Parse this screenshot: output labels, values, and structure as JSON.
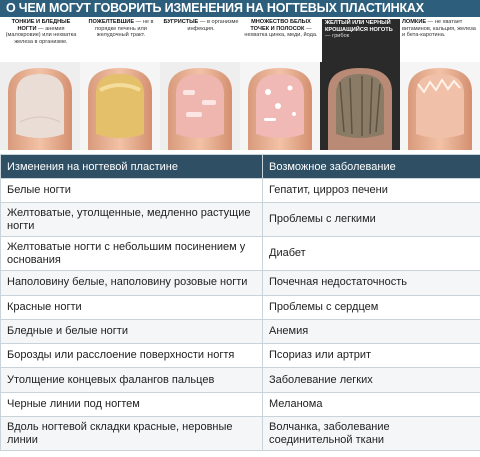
{
  "infographic": {
    "title": "О ЧЕМ МОГУТ ГОВОРИТЬ ИЗМЕНЕНИЯ НА НОГТЕВЫХ ПЛАСТИНКАХ",
    "captions": [
      {
        "heading": "ТОНКИЕ И БЛЕДНЫЕ НОГТИ",
        "text": "— анемия (малокровие) или нехватка железа в организме."
      },
      {
        "heading": "ПОЖЕЛТЕВШИЕ",
        "text": "— не в порядке печень или желудочный тракт."
      },
      {
        "heading": "БУГРИСТЫЕ",
        "text": "— в организме инфекция."
      },
      {
        "heading": "МНОЖЕСТВО БЕЛЫХ ТОЧЕК И ПОЛОСОК",
        "text": "— нехватка цинка, меди, йода."
      },
      {
        "heading": "ЖЕЛТЫЙ ИЛИ ЧЕРНЫЙ КРОШАЩИЙСЯ НОГОТЬ",
        "text": "— грибок"
      },
      {
        "heading": "ЛОМКИЕ",
        "text": "— не хватает витаминов, кальция, железа и бета-каротина."
      }
    ]
  },
  "table": {
    "headers": [
      "Изменения на ногтевой пластине",
      "Возможное заболевание"
    ],
    "rows": [
      [
        "Белые ногти",
        "Гепатит, цирроз печени"
      ],
      [
        "Желтоватые, утолщенные, медленно растущие ногти",
        "Проблемы с легкими"
      ],
      [
        "Желтоватые ногти с небольшим посинением у основания",
        "Диабет"
      ],
      [
        "Наполовину белые, наполовину розовые ногти",
        "Почечная недостаточность"
      ],
      [
        "Красные ногти",
        "Проблемы с сердцем"
      ],
      [
        "Бледные и белые ногти",
        "Анемия"
      ],
      [
        "Борозды или расслоение поверхности ногтя",
        "Псориаз или артрит"
      ],
      [
        "Утолщение концевых фалангов пальцев",
        "Заболевание легких"
      ],
      [
        "Черные линии под ногтем",
        "Меланома"
      ],
      [
        "Вдоль ногтевой складки красные, неровные линии",
        "Волчанка, заболевание соединительной ткани"
      ]
    ]
  }
}
